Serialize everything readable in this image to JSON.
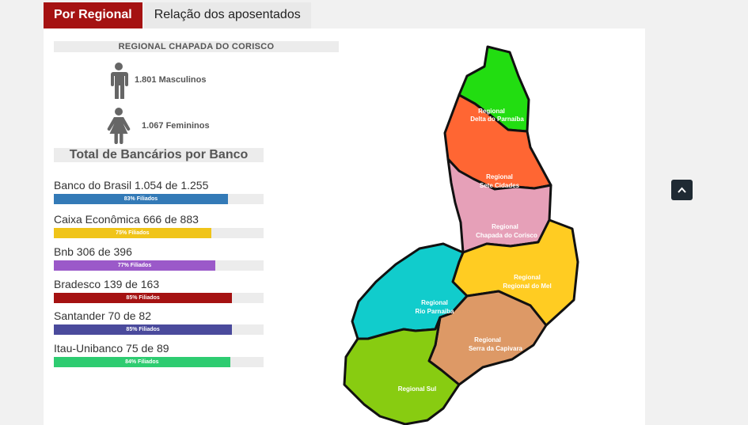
{
  "tabs": [
    {
      "label": "Por Regional",
      "active": true
    },
    {
      "label": "Relação dos aposentados",
      "active": false
    }
  ],
  "regional": {
    "title": "REGIONAL CHAPADA DO CORISCO",
    "male": "1.801 Masculinos",
    "female": "1.067 Femininos"
  },
  "banks_title": "Total de Bancários por Banco",
  "banks": [
    {
      "name": "Banco do Brasil 1.054 de 1.255",
      "percent": 83,
      "label": "83% Filiados",
      "color": "#337ab7"
    },
    {
      "name": "Caixa Econômica 666 de 883",
      "percent": 75,
      "label": "75% Filiados",
      "color": "#f0c419"
    },
    {
      "name": "Bnb 306 de 396",
      "percent": 77,
      "label": "77% Filiados",
      "color": "#9b59c9"
    },
    {
      "name": "Bradesco 139 de 163",
      "percent": 85,
      "label": "85% Filiados",
      "color": "#a51212"
    },
    {
      "name": "Santander 70 de 82",
      "percent": 85,
      "label": "85% Filiados",
      "color": "#4a4a9c"
    },
    {
      "name": "Itau-Unibanco 75 de 89",
      "percent": 84,
      "label": "84% Filiados",
      "color": "#2ecc71"
    }
  ],
  "map": {
    "regions": [
      {
        "line1": "Regional",
        "line2": "Delta do Parnaíba",
        "color": "#22dd11"
      },
      {
        "line1": "Regional",
        "line2": "Sete Cidades",
        "color": "#ff6633"
      },
      {
        "line1": "Regional",
        "line2": "Chapada do Corisco",
        "color": "#e6a0b8"
      },
      {
        "line1": "Regional",
        "line2": "Regional do Mel",
        "color": "#ffcc22"
      },
      {
        "line1": "Regional",
        "line2": "Rio Parnaiba",
        "color": "#11cccc"
      },
      {
        "line1": "Regional",
        "line2": "Serra da Capivara",
        "color": "#dd9966"
      },
      {
        "line1": "Regional Sul",
        "line2": "",
        "color": "#88cc11"
      }
    ]
  },
  "icons": {
    "male": "male-person-icon",
    "female": "female-person-icon",
    "scroll": "chevron-up-icon"
  }
}
